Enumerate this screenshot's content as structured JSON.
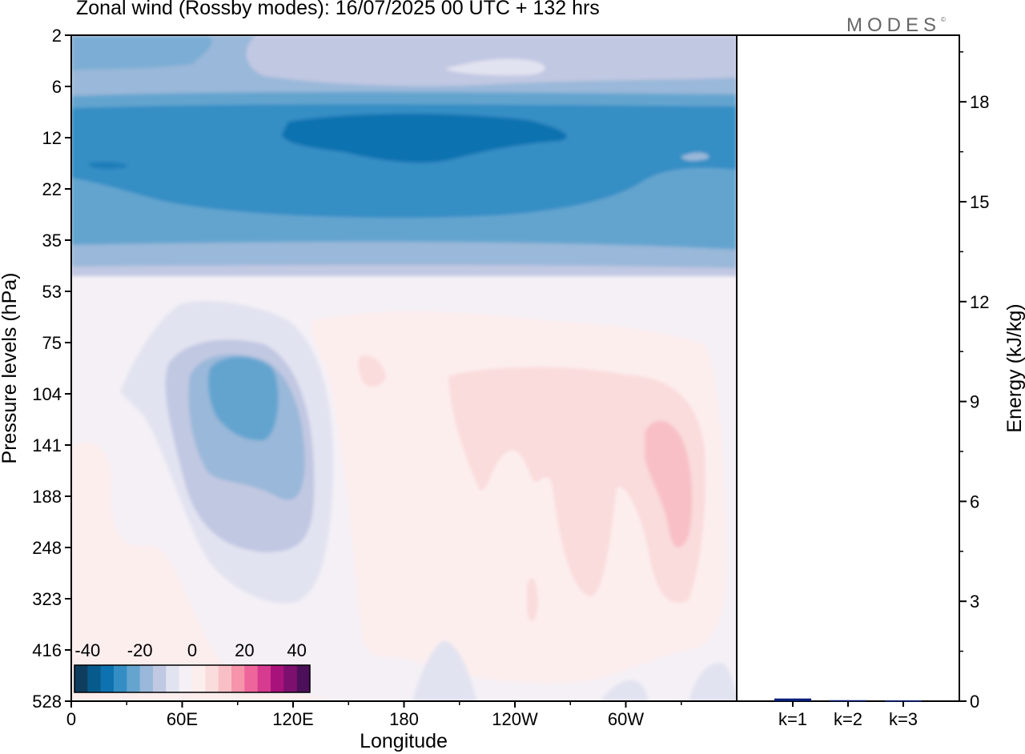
{
  "title": "Zonal wind (Rossby modes):  16/07/2025  00 UTC  + 132 hrs",
  "logo": "MODES",
  "colors": {
    "scale": [
      "#0f3d5e",
      "#075a8c",
      "#0e72b0",
      "#348ec4",
      "#64a4cf",
      "#9ab8d9",
      "#c1c8e2",
      "#e2e3f0",
      "#f4f0f6",
      "#fdeeee",
      "#fadcdc",
      "#f8c0c6",
      "#f594aa",
      "#ee659b",
      "#d63b8f",
      "#a8127b",
      "#7d0f6e",
      "#4c0f5a"
    ]
  },
  "chart_data": [
    {
      "type": "heatmap",
      "title": "Zonal wind (Rossby modes):  16/07/2025  00 UTC  + 132 hrs",
      "xlabel": "Longitude",
      "ylabel": "Pressure levels (hPa)",
      "x_ticks": [
        "0",
        "60E",
        "120E",
        "180",
        "120W",
        "60W"
      ],
      "y_ticks": [
        "2",
        "6",
        "12",
        "22",
        "35",
        "53",
        "75",
        "104",
        "141",
        "188",
        "248",
        "323",
        "416",
        "528"
      ],
      "colorbar": {
        "ticks": [
          "-40",
          "-20",
          "0",
          "20",
          "40"
        ],
        "range": [
          -45,
          45
        ]
      },
      "bands": [
        {
          "level": "2",
          "value": -15
        },
        {
          "level": "6",
          "value": -25
        },
        {
          "level": "12",
          "value": -33
        },
        {
          "level": "22",
          "value": -30
        },
        {
          "level": "35",
          "value": -18
        },
        {
          "level": "53",
          "value": 1
        },
        {
          "level": "528",
          "value": 1
        }
      ],
      "features": [
        {
          "name": "easterly core",
          "level": "12",
          "longitude": "180",
          "value": -35
        },
        {
          "name": "easterly cell",
          "level": "104",
          "longitude": "90E",
          "value": -20
        },
        {
          "name": "westerly cell",
          "level": "141",
          "longitude": "50W",
          "value": 10
        }
      ]
    },
    {
      "type": "bar",
      "ylabel": "Energy (kJ/kg)",
      "categories": [
        "k=1",
        "k=2",
        "k=3"
      ],
      "values": [
        0.08,
        0.03,
        0.02
      ],
      "y_ticks": [
        0,
        3,
        6,
        9,
        12,
        15,
        18
      ],
      "ylim": [
        0,
        20
      ],
      "bar_color": "#0a1e78"
    }
  ]
}
